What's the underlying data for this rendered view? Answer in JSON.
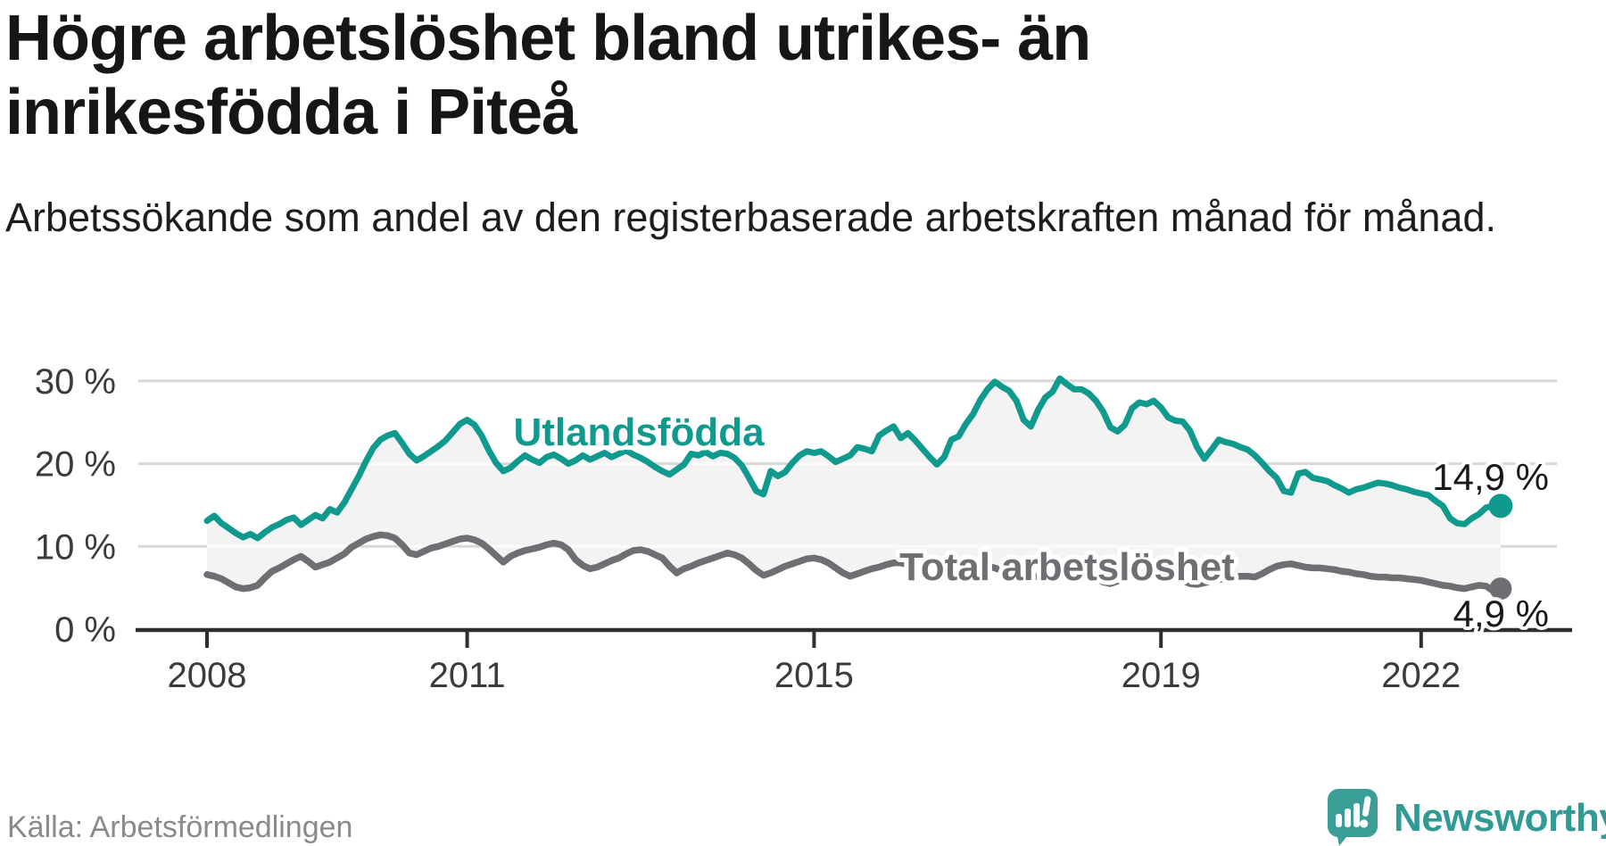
{
  "header": {
    "title": "Högre arbetslöshet bland utrikes- än inrikesfödda i Piteå",
    "subtitle": "Arbetssökande som andel av den registerbaserade arbetskraften månad för månad."
  },
  "footer": {
    "source": "Källa: Arbetsförmedlingen",
    "brand": "Newsworthy",
    "brand_icon": "newsworthy-speech-bubble-chart-icon",
    "brand_color": "#2f9b94"
  },
  "chart_data": {
    "type": "line",
    "unit": "%",
    "frequency": "monthly",
    "start_year": 2008,
    "start_month": 1,
    "grid": true,
    "legend_position": "inline-labels",
    "ylim": [
      0,
      32
    ],
    "xlim_years": [
      2008,
      2023
    ],
    "y_ticks": [
      {
        "value": 0,
        "label": "0 %"
      },
      {
        "value": 10,
        "label": "10 %"
      },
      {
        "value": 20,
        "label": "20 %"
      },
      {
        "value": 30,
        "label": "30 %"
      }
    ],
    "x_ticks": [
      {
        "year": 2008,
        "label": "2008"
      },
      {
        "year": 2011,
        "label": "2011"
      },
      {
        "year": 2015,
        "label": "2015"
      },
      {
        "year": 2019,
        "label": "2019"
      },
      {
        "year": 2022,
        "label": "2022"
      }
    ],
    "band_fill_between_series": true,
    "series": [
      {
        "name": "Utlandsfödda",
        "color": "#0f9a8d",
        "end_label": "14,9 %",
        "end_value": 14.9,
        "values": [
          13.1,
          13.7,
          12.8,
          12.2,
          11.6,
          11.1,
          11.5,
          11.0,
          11.7,
          12.3,
          12.7,
          13.2,
          13.5,
          12.6,
          13.2,
          13.8,
          13.4,
          14.5,
          14.1,
          15.3,
          16.9,
          18.5,
          20.3,
          21.9,
          22.9,
          23.4,
          23.7,
          22.5,
          21.2,
          20.4,
          20.9,
          21.5,
          22.1,
          22.8,
          23.8,
          24.8,
          25.3,
          24.7,
          23.4,
          21.6,
          20.1,
          19.1,
          19.5,
          20.3,
          21.0,
          20.5,
          20.1,
          20.8,
          21.1,
          20.6,
          20.0,
          20.4,
          21.0,
          20.5,
          20.9,
          21.3,
          20.8,
          21.2,
          21.6,
          21.1,
          20.7,
          20.2,
          19.6,
          19.1,
          18.7,
          19.3,
          19.9,
          21.2,
          21.0,
          21.4,
          20.9,
          21.3,
          21.2,
          20.7,
          19.8,
          18.3,
          16.7,
          16.3,
          19.1,
          18.5,
          19.0,
          20.1,
          21.0,
          21.5,
          21.3,
          21.5,
          20.9,
          20.2,
          20.6,
          21.0,
          22.0,
          21.8,
          21.5,
          23.4,
          24.0,
          24.5,
          23.1,
          23.7,
          22.8,
          21.8,
          20.8,
          19.9,
          20.8,
          22.9,
          23.3,
          24.8,
          26.0,
          27.7,
          29.0,
          29.9,
          29.3,
          28.8,
          27.6,
          25.3,
          24.5,
          26.5,
          28.0,
          28.7,
          30.3,
          29.6,
          29.0,
          29.0,
          28.5,
          27.6,
          26.3,
          24.4,
          23.9,
          24.7,
          26.7,
          27.4,
          27.2,
          27.6,
          26.8,
          25.6,
          25.2,
          25.1,
          24.0,
          22.0,
          20.6,
          21.7,
          22.9,
          22.6,
          22.4,
          22.0,
          21.7,
          21.0,
          20.1,
          19.1,
          18.3,
          16.7,
          16.5,
          18.8,
          19.0,
          18.3,
          18.1,
          17.9,
          17.4,
          17.0,
          16.5,
          16.9,
          17.1,
          17.4,
          17.7,
          17.6,
          17.4,
          17.1,
          16.9,
          16.6,
          16.4,
          16.2,
          15.5,
          14.9,
          13.4,
          12.8,
          12.7,
          13.4,
          13.9,
          14.7,
          14.9,
          14.9
        ]
      },
      {
        "name": "Total arbetslöshet",
        "color": "#6e6e73",
        "end_label": "4,9 %",
        "end_value": 4.9,
        "values": [
          6.6,
          6.4,
          6.1,
          5.6,
          5.1,
          4.9,
          5.0,
          5.3,
          6.2,
          7.0,
          7.4,
          7.9,
          8.4,
          8.8,
          8.2,
          7.5,
          7.8,
          8.1,
          8.6,
          9.1,
          9.9,
          10.4,
          10.9,
          11.2,
          11.4,
          11.3,
          11.0,
          10.2,
          9.2,
          9.0,
          9.4,
          9.8,
          10.0,
          10.3,
          10.6,
          10.9,
          11.0,
          10.8,
          10.4,
          9.7,
          8.9,
          8.1,
          8.8,
          9.2,
          9.5,
          9.7,
          9.9,
          10.2,
          10.4,
          10.2,
          9.6,
          8.4,
          7.7,
          7.3,
          7.5,
          7.9,
          8.3,
          8.6,
          9.1,
          9.5,
          9.6,
          9.4,
          9.0,
          8.6,
          7.6,
          6.8,
          7.3,
          7.6,
          8.0,
          8.3,
          8.6,
          8.9,
          9.2,
          9.0,
          8.6,
          7.9,
          7.1,
          6.5,
          6.8,
          7.2,
          7.6,
          7.9,
          8.2,
          8.5,
          8.6,
          8.4,
          8.0,
          7.4,
          6.8,
          6.4,
          6.7,
          7.0,
          7.3,
          7.5,
          7.8,
          8.0,
          8.0,
          7.8,
          7.4,
          6.9,
          6.4,
          6.2,
          6.5,
          6.8,
          7.0,
          7.2,
          7.4,
          7.6,
          7.6,
          7.4,
          7.1,
          6.6,
          6.1,
          5.9,
          6.2,
          6.4,
          6.6,
          6.8,
          7.0,
          7.1,
          7.1,
          6.9,
          6.6,
          6.2,
          5.7,
          5.5,
          5.8,
          6.0,
          6.2,
          6.4,
          6.5,
          6.6,
          6.8,
          6.6,
          6.3,
          5.9,
          5.5,
          5.4,
          5.6,
          5.8,
          6.0,
          6.1,
          6.2,
          6.4,
          6.4,
          6.3,
          6.7,
          7.2,
          7.6,
          7.8,
          7.9,
          7.7,
          7.5,
          7.4,
          7.4,
          7.3,
          7.2,
          7.0,
          6.9,
          6.7,
          6.6,
          6.4,
          6.3,
          6.3,
          6.2,
          6.2,
          6.1,
          6.0,
          5.9,
          5.7,
          5.5,
          5.3,
          5.2,
          5.0,
          4.9,
          5.1,
          5.3,
          5.2,
          4.6,
          4.9
        ]
      }
    ],
    "styles": {
      "grid_color": "#d8d8d8",
      "grid_color_inside_band": "#fbfbfb",
      "band_fill": "#f3f3f3",
      "axis_color": "#2e2e2e",
      "tick_label_color": "#3b3b3b",
      "value_label_color": "#191919"
    }
  }
}
